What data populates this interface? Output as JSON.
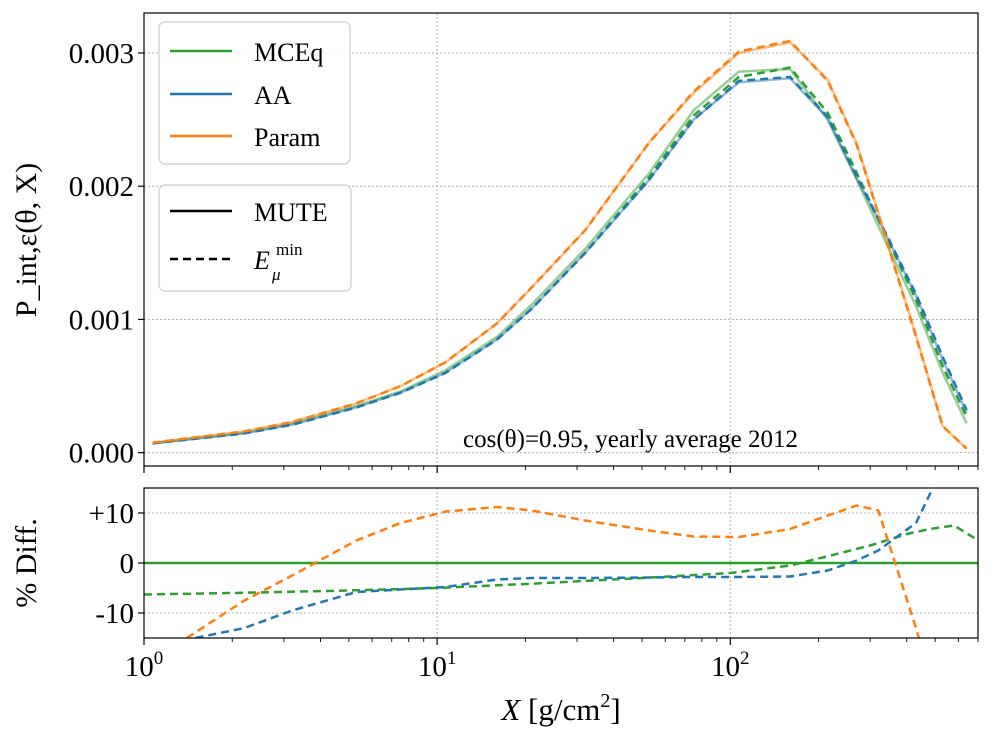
{
  "chart_data": [
    {
      "type": "line",
      "panel": "top",
      "xscale": "log",
      "xlim": [
        1,
        700
      ],
      "ylim": [
        -0.0001,
        0.0033
      ],
      "ylabel": "P_int,ε(θ, X)",
      "yticks": [
        0.0,
        0.001,
        0.002,
        0.003
      ],
      "ytick_labels": [
        "0.000",
        "0.001",
        "0.002",
        "0.003"
      ],
      "grid": true,
      "annotation": "cos(θ)=0.95, yearly average 2012",
      "legend_models": {
        "position": "top-left",
        "entries": [
          {
            "label": "MCEq",
            "color": "#2ca02c"
          },
          {
            "label": "AA",
            "color": "#1f77b4"
          },
          {
            "label": "Param",
            "color": "#ff7f0e"
          }
        ]
      },
      "legend_styles": {
        "position": "upper-left, below model legend",
        "entries": [
          {
            "label": "MUTE",
            "style": "solid"
          },
          {
            "label": "E",
            "label_sup": "min",
            "label_sub": "μ",
            "style": "dashed"
          }
        ]
      },
      "series": [
        {
          "name": "MCEq MUTE",
          "color": "#2ca02c",
          "style": "solid",
          "alpha": 0.5,
          "x": [
            1.07,
            1.5,
            2.2,
            3.2,
            5.3,
            7.5,
            10.7,
            16,
            21,
            32,
            53,
            75,
            107,
            160,
            215,
            270,
            320,
            430,
            530,
            640
          ],
          "y": [
            7e-05,
            0.00011,
            0.00015,
            0.00022,
            0.00035,
            0.00046,
            0.00062,
            0.00087,
            0.00111,
            0.00153,
            0.0021,
            0.00257,
            0.00286,
            0.00288,
            0.0025,
            0.00205,
            0.0017,
            0.0011,
            0.0006,
            0.00022
          ]
        },
        {
          "name": "MCEq Emin",
          "color": "#2ca02c",
          "style": "dashed",
          "alpha": 1.0,
          "x": [
            1.07,
            1.5,
            2.2,
            3.2,
            5.3,
            7.5,
            10.7,
            16,
            21,
            32,
            53,
            75,
            107,
            160,
            215,
            270,
            320,
            430,
            530,
            640
          ],
          "y": [
            7e-05,
            0.00011,
            0.00015,
            0.00021,
            0.00034,
            0.00045,
            0.0006,
            0.00085,
            0.00108,
            0.0015,
            0.00207,
            0.00253,
            0.00282,
            0.00289,
            0.00255,
            0.0021,
            0.00175,
            0.00115,
            0.00065,
            0.00027
          ]
        },
        {
          "name": "AA MUTE",
          "color": "#1f77b4",
          "style": "solid",
          "alpha": 0.5,
          "x": [
            1.07,
            1.5,
            2.2,
            3.2,
            5.3,
            7.5,
            10.7,
            16,
            21,
            32,
            53,
            75,
            107,
            160,
            215,
            270,
            320,
            430,
            530,
            640
          ],
          "y": [
            7e-05,
            0.000105,
            0.000145,
            0.00021,
            0.00034,
            0.00045,
            0.0006,
            0.00085,
            0.00108,
            0.0015,
            0.00205,
            0.0025,
            0.00278,
            0.00281,
            0.00251,
            0.00206,
            0.00175,
            0.00118,
            0.0007,
            0.0003
          ]
        },
        {
          "name": "AA Emin",
          "color": "#1f77b4",
          "style": "dashed",
          "alpha": 1.0,
          "x": [
            1.07,
            1.5,
            2.2,
            3.2,
            5.3,
            7.5,
            10.7,
            16,
            21,
            32,
            53,
            75,
            107,
            160,
            215,
            270,
            320,
            430,
            530,
            640
          ],
          "y": [
            7e-05,
            0.000105,
            0.000145,
            0.00021,
            0.00034,
            0.00045,
            0.0006,
            0.00085,
            0.00108,
            0.0015,
            0.00205,
            0.0025,
            0.00279,
            0.00282,
            0.00252,
            0.00207,
            0.00176,
            0.00119,
            0.00072,
            0.00032
          ]
        },
        {
          "name": "Param MUTE",
          "color": "#ff7f0e",
          "style": "solid",
          "alpha": 0.5,
          "x": [
            1.07,
            1.5,
            2.2,
            3.2,
            5.3,
            7.5,
            10.7,
            16,
            21,
            32,
            53,
            75,
            107,
            160,
            215,
            270,
            320,
            430,
            530,
            640
          ],
          "y": [
            7.5e-05,
            0.000115,
            0.00016,
            0.00023,
            0.00037,
            0.0005,
            0.00068,
            0.00097,
            0.00124,
            0.00167,
            0.00233,
            0.0027,
            0.003,
            0.00308,
            0.0028,
            0.00232,
            0.0018,
            0.00088,
            0.0002,
            3e-05
          ]
        },
        {
          "name": "Param Emin",
          "color": "#ff7f0e",
          "style": "dashed",
          "alpha": 1.0,
          "x": [
            1.07,
            1.5,
            2.2,
            3.2,
            5.3,
            7.5,
            10.7,
            16,
            21,
            32,
            53,
            75,
            107,
            160,
            215,
            270,
            320,
            430,
            530,
            640
          ],
          "y": [
            7.5e-05,
            0.000115,
            0.00016,
            0.00023,
            0.00037,
            0.0005,
            0.00068,
            0.00097,
            0.00124,
            0.00167,
            0.00233,
            0.00271,
            0.00301,
            0.00309,
            0.00279,
            0.00231,
            0.00179,
            0.00087,
            0.0002,
            3e-05
          ]
        }
      ]
    },
    {
      "type": "line",
      "panel": "bottom",
      "xscale": "log",
      "xlim": [
        1,
        700
      ],
      "ylim": [
        -15,
        15
      ],
      "xlabel": "X [g/cm²]",
      "xlabel_main": "X [g/cm",
      "xlabel_sup": "2",
      "xlabel_end": "]",
      "ylabel": "% Diff.",
      "yticks": [
        -10,
        0,
        10
      ],
      "ytick_labels": [
        "-10",
        "0",
        "+10"
      ],
      "xticks": [
        1,
        10,
        100
      ],
      "xtick_labels": [
        {
          "base": "10",
          "exp": "0"
        },
        {
          "base": "10",
          "exp": "1"
        },
        {
          "base": "10",
          "exp": "2"
        }
      ],
      "grid": true,
      "series": [
        {
          "name": "MCEq MUTE",
          "color": "#2ca02c",
          "style": "solid",
          "x": [
            1,
            700
          ],
          "y": [
            0,
            0
          ]
        },
        {
          "name": "MCEq Emin",
          "color": "#2ca02c",
          "style": "dashed",
          "x": [
            1,
            2,
            5,
            10,
            20,
            50,
            100,
            160,
            220,
            300,
            400,
            480,
            580,
            680
          ],
          "y": [
            -6.3,
            -6.0,
            -5.5,
            -5.0,
            -4.2,
            -3.0,
            -2.0,
            -0.5,
            1.5,
            3.5,
            5.8,
            6.8,
            7.5,
            5.0
          ]
        },
        {
          "name": "AA Emin",
          "color": "#1f77b4",
          "style": "dashed",
          "x": [
            1.5,
            2.2,
            3.2,
            5.3,
            7.5,
            10.7,
            16,
            21,
            32,
            53,
            75,
            107,
            160,
            215,
            270,
            320,
            430,
            500
          ],
          "y": [
            -15,
            -13,
            -9.5,
            -5.8,
            -5.3,
            -4.8,
            -3.3,
            -3.0,
            -3.0,
            -2.9,
            -2.8,
            -2.8,
            -2.7,
            -1.5,
            0.5,
            2.5,
            8.0,
            16
          ]
        },
        {
          "name": "Param Emin",
          "color": "#ff7f0e",
          "style": "dashed",
          "x": [
            1.4,
            2.2,
            3.2,
            5.3,
            7.5,
            10.7,
            16,
            21,
            32,
            53,
            75,
            107,
            160,
            215,
            270,
            320,
            430,
            445
          ],
          "y": [
            -15,
            -7.5,
            -2.5,
            4.5,
            8.0,
            10.3,
            11.2,
            10.5,
            8.5,
            6.5,
            5.3,
            5.2,
            6.8,
            9.5,
            11.5,
            10.5,
            -13.0,
            -16
          ]
        }
      ]
    }
  ]
}
